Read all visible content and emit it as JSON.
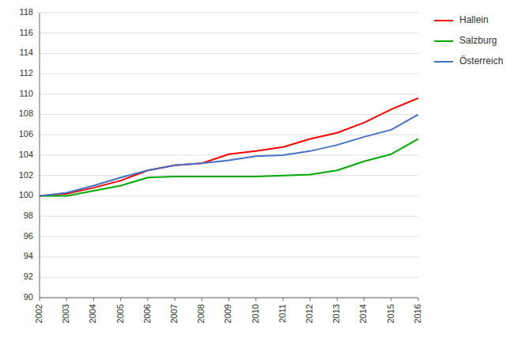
{
  "chart_data": {
    "type": "line",
    "x": [
      2002,
      2003,
      2004,
      2005,
      2006,
      2007,
      2008,
      2009,
      2010,
      2011,
      2012,
      2013,
      2014,
      2015,
      2016
    ],
    "series": [
      {
        "name": "Hallein",
        "color": "#ff0000",
        "values": [
          100.0,
          100.2,
          100.8,
          101.5,
          102.5,
          103.0,
          103.2,
          104.1,
          104.4,
          104.8,
          105.6,
          106.2,
          107.2,
          108.5,
          109.6
        ]
      },
      {
        "name": "Salzburg",
        "color": "#00aa00",
        "values": [
          100.0,
          100.0,
          100.5,
          101.0,
          101.8,
          101.9,
          101.9,
          101.9,
          101.9,
          102.0,
          102.1,
          102.5,
          103.4,
          104.1,
          105.6
        ]
      },
      {
        "name": "Österreich",
        "color": "#4472c4",
        "values": [
          100.0,
          100.3,
          101.0,
          101.8,
          102.5,
          103.0,
          103.2,
          103.5,
          103.9,
          104.0,
          104.4,
          105.0,
          105.8,
          106.5,
          108.0
        ]
      }
    ],
    "xlim": [
      2002,
      2016
    ],
    "xticks": [
      2002,
      2003,
      2004,
      2005,
      2006,
      2007,
      2008,
      2009,
      2010,
      2011,
      2012,
      2013,
      2014,
      2015,
      2016
    ],
    "ylim": [
      90,
      118
    ],
    "yticks": [
      90,
      92,
      94,
      96,
      98,
      100,
      102,
      104,
      106,
      108,
      110,
      112,
      114,
      116,
      118
    ],
    "grid": true,
    "legend": "right"
  }
}
